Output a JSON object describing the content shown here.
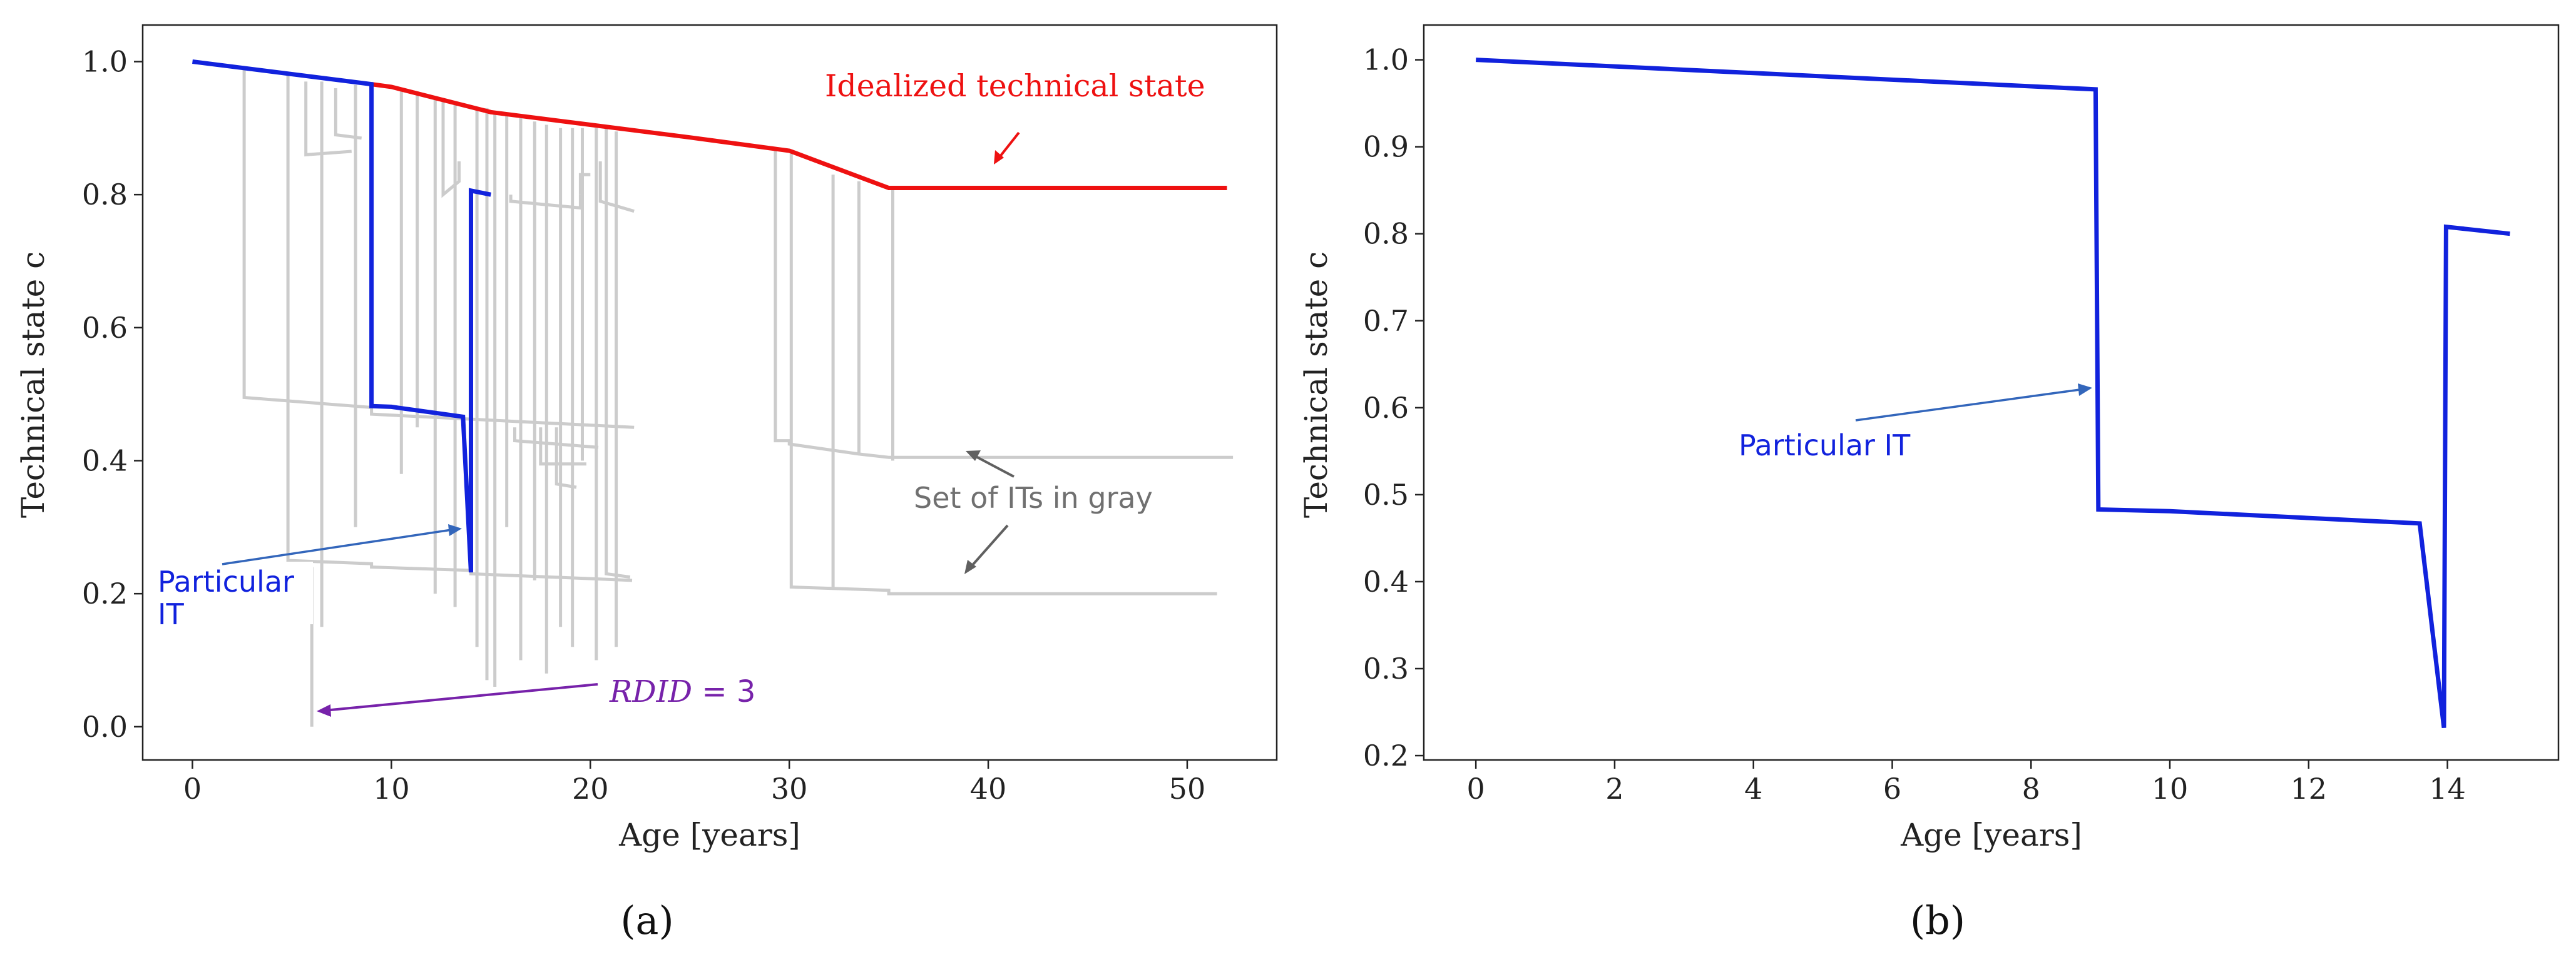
{
  "colors": {
    "idealized": "#ee1111",
    "particular": "#1122dd",
    "gray": "#cccccc",
    "gray_text": "#707070",
    "arrow_gray": "#606060",
    "arrow_blue": "#3366bb",
    "purple": "#7722aa",
    "axis": "#222222"
  },
  "chart_data": [
    {
      "id": "a",
      "panel_label": "(a)",
      "type": "line",
      "xlabel": "Age [years]",
      "ylabel": "Technical state c",
      "xlim": [
        -2.5,
        54.5
      ],
      "ylim": [
        -0.05,
        1.055
      ],
      "xticks": [
        0,
        10,
        20,
        30,
        40,
        50
      ],
      "xtick_labels": [
        "0",
        "10",
        "20",
        "30",
        "40",
        "50"
      ],
      "yticks": [
        0.0,
        0.2,
        0.4,
        0.6,
        0.8,
        1.0
      ],
      "ytick_labels": [
        "0.0",
        "0.2",
        "0.4",
        "0.6",
        "0.8",
        "1.0"
      ],
      "annotations": {
        "idealized": "Idealized technical state",
        "gray_set": "Set of ITs in gray",
        "particular_line1": "Particular",
        "particular_line2": "IT",
        "rdid_name": "RDID",
        "rdid_value": " = 3"
      },
      "series": [
        {
          "name": "Idealized technical state",
          "color_key": "idealized",
          "x": [
            9,
            10,
            15,
            20,
            25,
            30,
            35,
            52
          ],
          "y": [
            0.966,
            0.962,
            0.924,
            0.905,
            0.886,
            0.866,
            0.81,
            0.81
          ]
        },
        {
          "name": "Particular IT",
          "color_key": "particular",
          "x": [
            0,
            9,
            9,
            10,
            13.6,
            14,
            14,
            15
          ],
          "y": [
            1.0,
            0.966,
            0.482,
            0.481,
            0.466,
            0.232,
            0.806,
            0.8
          ]
        }
      ],
      "gray_series": [
        {
          "x": [
            2.6,
            2.6,
            9,
            9,
            22.2
          ],
          "y": [
            0.99,
            0.495,
            0.48,
            0.47,
            0.45
          ]
        },
        {
          "x": [
            4.8,
            4.8,
            9,
            9,
            14,
            14,
            22.1
          ],
          "y": [
            0.98,
            0.25,
            0.245,
            0.24,
            0.235,
            0.23,
            0.22
          ]
        },
        {
          "x": [
            5.7,
            5.7,
            8
          ],
          "y": [
            0.97,
            0.86,
            0.865
          ]
        },
        {
          "x": [
            6,
            6
          ],
          "y": [
            0.24,
            0.0
          ]
        },
        {
          "x": [
            6.5,
            6.5
          ],
          "y": [
            0.97,
            0.15
          ]
        },
        {
          "x": [
            7.2,
            7.2,
            8.5
          ],
          "y": [
            0.96,
            0.89,
            0.885
          ]
        },
        {
          "x": [
            8.2,
            8.2
          ],
          "y": [
            0.965,
            0.3
          ]
        },
        {
          "x": [
            10.5,
            10.5
          ],
          "y": [
            0.96,
            0.38
          ]
        },
        {
          "x": [
            11.3,
            11.3
          ],
          "y": [
            0.955,
            0.45
          ]
        },
        {
          "x": [
            12.2,
            12.2
          ],
          "y": [
            0.945,
            0.2
          ]
        },
        {
          "x": [
            12.6,
            12.6,
            13.4,
            13.4
          ],
          "y": [
            0.94,
            0.8,
            0.82,
            0.85
          ]
        },
        {
          "x": [
            13.2,
            13.2
          ],
          "y": [
            0.935,
            0.18
          ]
        },
        {
          "x": [
            14.3,
            14.3
          ],
          "y": [
            0.93,
            0.12
          ]
        },
        {
          "x": [
            14.8,
            14.8
          ],
          "y": [
            0.93,
            0.07
          ]
        },
        {
          "x": [
            15.2,
            15.2
          ],
          "y": [
            0.924,
            0.06
          ]
        },
        {
          "x": [
            15.8,
            15.8
          ],
          "y": [
            0.92,
            0.3
          ]
        },
        {
          "x": [
            16.5,
            16.5
          ],
          "y": [
            0.915,
            0.1
          ]
        },
        {
          "x": [
            17.2,
            17.2
          ],
          "y": [
            0.91,
            0.22
          ]
        },
        {
          "x": [
            17.8,
            17.8
          ],
          "y": [
            0.905,
            0.08
          ]
        },
        {
          "x": [
            18.5,
            18.5
          ],
          "y": [
            0.9,
            0.15
          ]
        },
        {
          "x": [
            19.1,
            19.1
          ],
          "y": [
            0.9,
            0.12
          ]
        },
        {
          "x": [
            19.6,
            19.6
          ],
          "y": [
            0.9,
            0.4
          ]
        },
        {
          "x": [
            20.3,
            20.3
          ],
          "y": [
            0.9,
            0.1
          ]
        },
        {
          "x": [
            20.8,
            20.8,
            22
          ],
          "y": [
            0.9,
            0.23,
            0.225
          ]
        },
        {
          "x": [
            21.3,
            21.3
          ],
          "y": [
            0.895,
            0.12
          ]
        },
        {
          "x": [
            16,
            16,
            19.5,
            19.5
          ],
          "y": [
            0.8,
            0.79,
            0.78,
            0.8
          ]
        },
        {
          "x": [
            19.5,
            19.5,
            20
          ],
          "y": [
            0.8,
            0.83,
            0.83
          ]
        },
        {
          "x": [
            20.5,
            20.5,
            22.2
          ],
          "y": [
            0.85,
            0.79,
            0.775
          ]
        },
        {
          "x": [
            16.2,
            16.2,
            20.4
          ],
          "y": [
            0.45,
            0.43,
            0.42
          ]
        },
        {
          "x": [
            17.5,
            17.5,
            19.8
          ],
          "y": [
            0.45,
            0.395,
            0.395
          ]
        },
        {
          "x": [
            18.3,
            18.3,
            19.3
          ],
          "y": [
            0.45,
            0.365,
            0.36
          ]
        },
        {
          "x": [
            29.3,
            29.3,
            30,
            30,
            33.5,
            33.5,
            35,
            35,
            52.3
          ],
          "y": [
            0.87,
            0.43,
            0.43,
            0.425,
            0.41,
            0.41,
            0.405,
            0.405,
            0.405
          ]
        },
        {
          "x": [
            30.1,
            30.1,
            35,
            35,
            51.5
          ],
          "y": [
            0.865,
            0.21,
            0.205,
            0.2,
            0.2
          ]
        },
        {
          "x": [
            32.2,
            32.2
          ],
          "y": [
            0.83,
            0.21
          ]
        },
        {
          "x": [
            33.5,
            33.5
          ],
          "y": [
            0.82,
            0.41
          ]
        },
        {
          "x": [
            35.2,
            35.2
          ],
          "y": [
            0.81,
            0.4
          ]
        }
      ]
    },
    {
      "id": "b",
      "panel_label": "(b)",
      "type": "line",
      "xlabel": "Age [years]",
      "ylabel": "Technical state c",
      "xlim": [
        -0.75,
        15.6
      ],
      "ylim": [
        0.195,
        1.04
      ],
      "xticks": [
        0,
        2,
        4,
        6,
        8,
        10,
        12,
        14
      ],
      "xtick_labels": [
        "0",
        "2",
        "4",
        "6",
        "8",
        "10",
        "12",
        "14"
      ],
      "yticks": [
        0.2,
        0.3,
        0.4,
        0.5,
        0.6,
        0.7,
        0.8,
        0.9,
        1.0
      ],
      "ytick_labels": [
        "0.2",
        "0.3",
        "0.4",
        "0.5",
        "0.6",
        "0.7",
        "0.8",
        "0.9",
        "1.0"
      ],
      "annotations": {
        "particular": "Particular IT"
      },
      "series": [
        {
          "name": "Particular IT",
          "color_key": "particular",
          "x": [
            0,
            8.93,
            8.97,
            10,
            13.6,
            13.95,
            13.98,
            14.9
          ],
          "y": [
            1.0,
            0.966,
            0.483,
            0.481,
            0.467,
            0.232,
            0.808,
            0.8
          ]
        }
      ]
    }
  ]
}
